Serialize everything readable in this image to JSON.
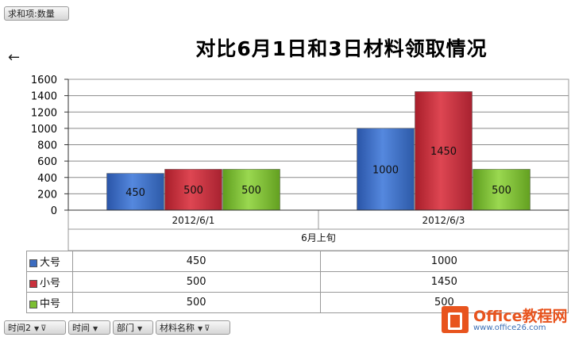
{
  "pivot": {
    "values_field": "求和项:数量",
    "bottom_fields": [
      "时间2",
      "时间",
      "部门",
      "材料名称"
    ]
  },
  "chart_data": {
    "type": "bar",
    "title": "对比6月1日和3日材料领取情况",
    "categories": [
      "2012/6/1",
      "2012/6/3"
    ],
    "group_label": "6月上旬",
    "series": [
      {
        "name": "大号",
        "values": [
          450,
          1000
        ],
        "color": "#3c6cc0"
      },
      {
        "name": "小号",
        "values": [
          500,
          1450
        ],
        "color": "#c9303c"
      },
      {
        "name": "中号",
        "values": [
          500,
          500
        ],
        "color": "#7cbf32"
      }
    ],
    "ylim": [
      0,
      1600
    ],
    "yticks": [
      0,
      200,
      400,
      600,
      800,
      1000,
      1200,
      1400,
      1600
    ],
    "grid": true,
    "data_labels": true,
    "legend": "data-table"
  },
  "watermark": {
    "title": "Office教程网",
    "url": "www.office26.com"
  }
}
